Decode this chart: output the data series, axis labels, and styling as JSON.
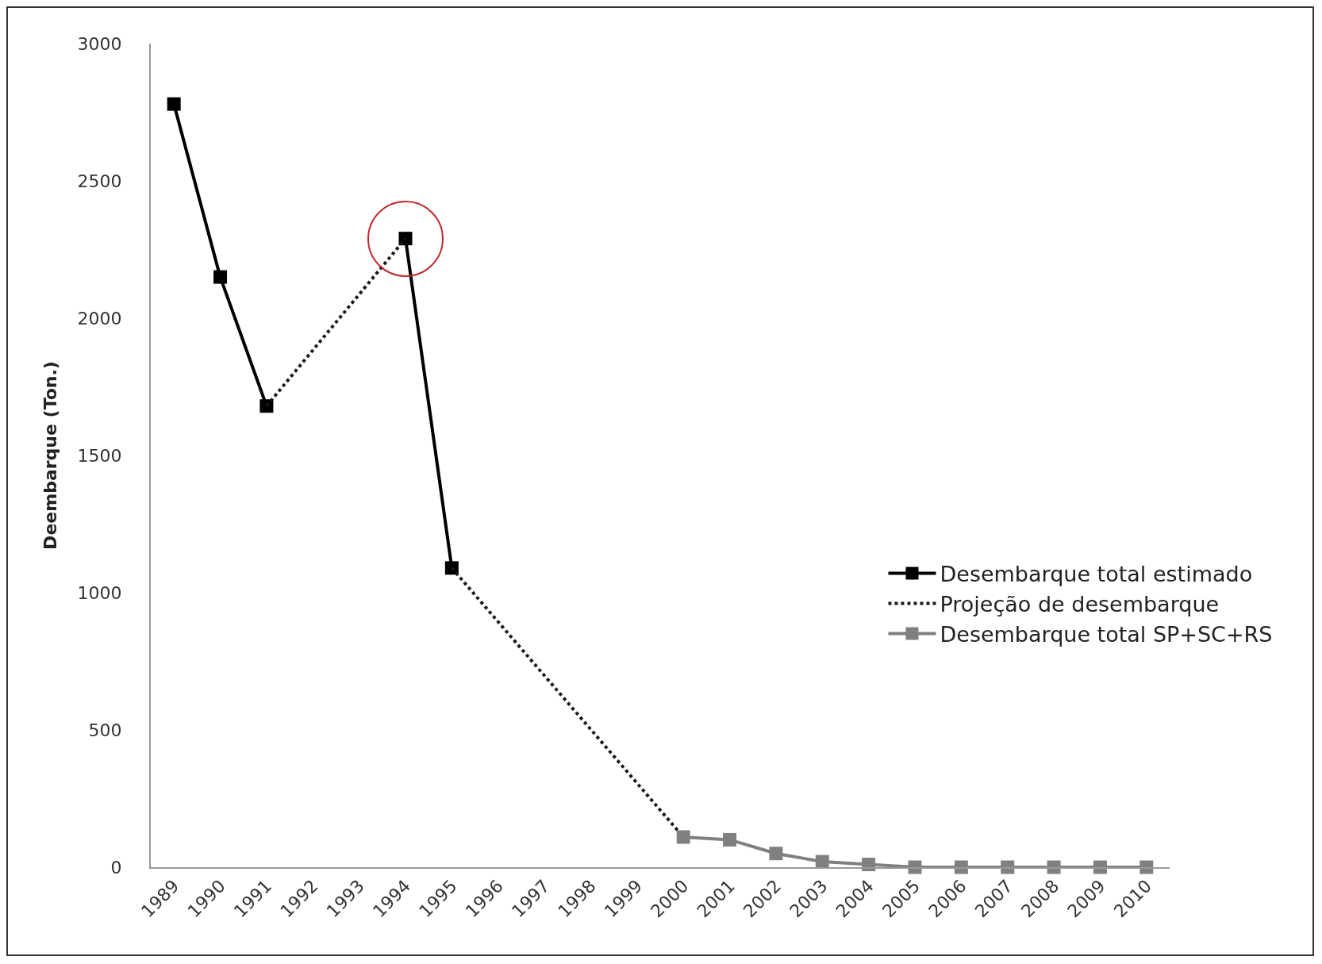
{
  "chart_data": {
    "type": "line",
    "ylabel": "Deembarque (Ton.)",
    "x": [
      1989,
      1990,
      1991,
      1992,
      1993,
      1994,
      1995
    ],
    "series": [
      {
        "name": "Desembarque total estimado",
        "color": "#000000",
        "marker": "square",
        "line_style": "solid",
        "values": [
          2780,
          2150,
          1680,
          null,
          null,
          2290,
          1090
        ]
      },
      {
        "name": "Projeção de desembarque",
        "color": "#1a1a1a",
        "marker": "none",
        "line_style": "dotted",
        "x": [
          1991,
          1994,
          null,
          1995,
          2000
        ],
        "values": [
          1680,
          2290,
          null,
          1090,
          110
        ]
      },
      {
        "name": "Desembarque total SP+SC+RS",
        "color": "#808080",
        "marker": "square",
        "line_style": "solid",
        "x": [
          2000,
          2001,
          2002,
          2003,
          2004,
          2005,
          2006,
          2007,
          2008,
          2009,
          2010
        ],
        "values": [
          110,
          100,
          50,
          20,
          10,
          0,
          0,
          0,
          0,
          0,
          0
        ]
      }
    ],
    "xlim": [
      1988.5,
      2010.5
    ],
    "xticks": [
      1989,
      1990,
      1991,
      1992,
      1993,
      1994,
      1995,
      1996,
      1997,
      1998,
      1999,
      2000,
      2001,
      2002,
      2003,
      2004,
      2005,
      2006,
      2007,
      2008,
      2009,
      2010
    ],
    "ylim": [
      0,
      3000
    ],
    "yticks": [
      0,
      500,
      1000,
      1500,
      2000,
      2500,
      3000
    ],
    "grid": false,
    "legend": "right"
  }
}
